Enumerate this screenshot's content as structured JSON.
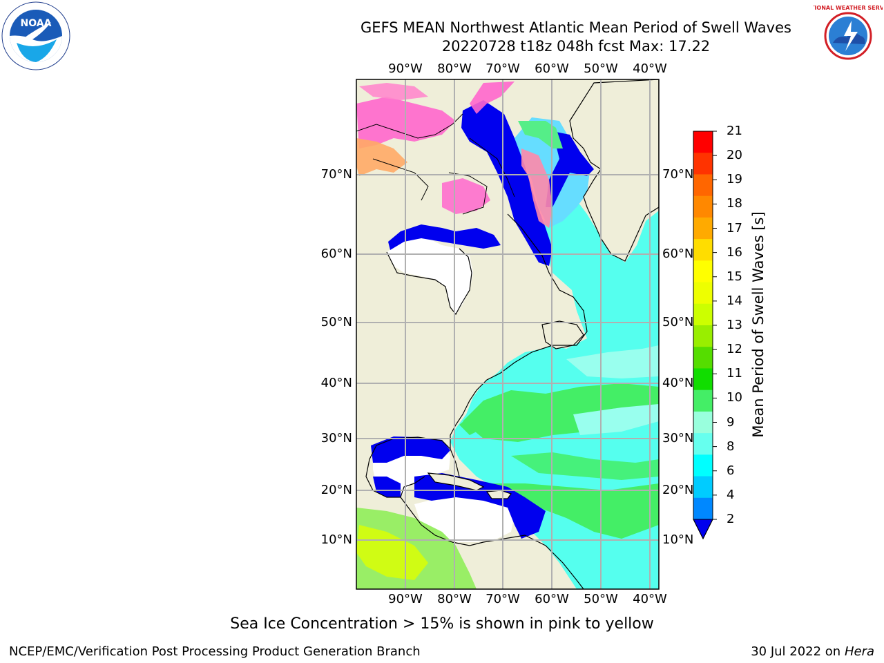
{
  "title_line1": "GEFS MEAN Northwest Atlantic Mean Period of Swell Waves",
  "title_line2": "20220728 t18z 048h fcst   Max: 17.22",
  "lon_labels": [
    "90°W",
    "80°W",
    "70°W",
    "60°W",
    "50°W",
    "40°W"
  ],
  "lat_labels": [
    "70°N",
    "60°N",
    "50°N",
    "40°N",
    "30°N",
    "20°N",
    "10°N"
  ],
  "colorbar": {
    "label": "Mean Period of Swell Waves [s]",
    "ticks": [
      "21",
      "20",
      "19",
      "18",
      "17",
      "16",
      "15",
      "14",
      "13",
      "12",
      "11",
      "10",
      "9",
      "8",
      "6",
      "4",
      "2"
    ],
    "colors": [
      "#ff0000",
      "#ff3300",
      "#ff6600",
      "#ff8800",
      "#ffaa00",
      "#ffdd00",
      "#ffff00",
      "#eeff00",
      "#ccff00",
      "#99ee00",
      "#55dd00",
      "#11dd00",
      "#44ee66",
      "#99ffdd",
      "#66ffee",
      "#00ffff",
      "#00ccff",
      "#0088ff"
    ],
    "under_color": "#0000ee"
  },
  "caption": "Sea Ice Concentration > 15% is shown in pink to yellow",
  "footer_left": "NCEP/EMC/Verification Post Processing Product Generation Branch",
  "footer_date": "30 Jul 2022 on ",
  "footer_host": "Hera",
  "logos": {
    "left": "NOAA",
    "right": "NATIONAL WEATHER SERVICE"
  },
  "colors": {
    "land": "#efeed9",
    "grid": "#b0b0b0"
  }
}
